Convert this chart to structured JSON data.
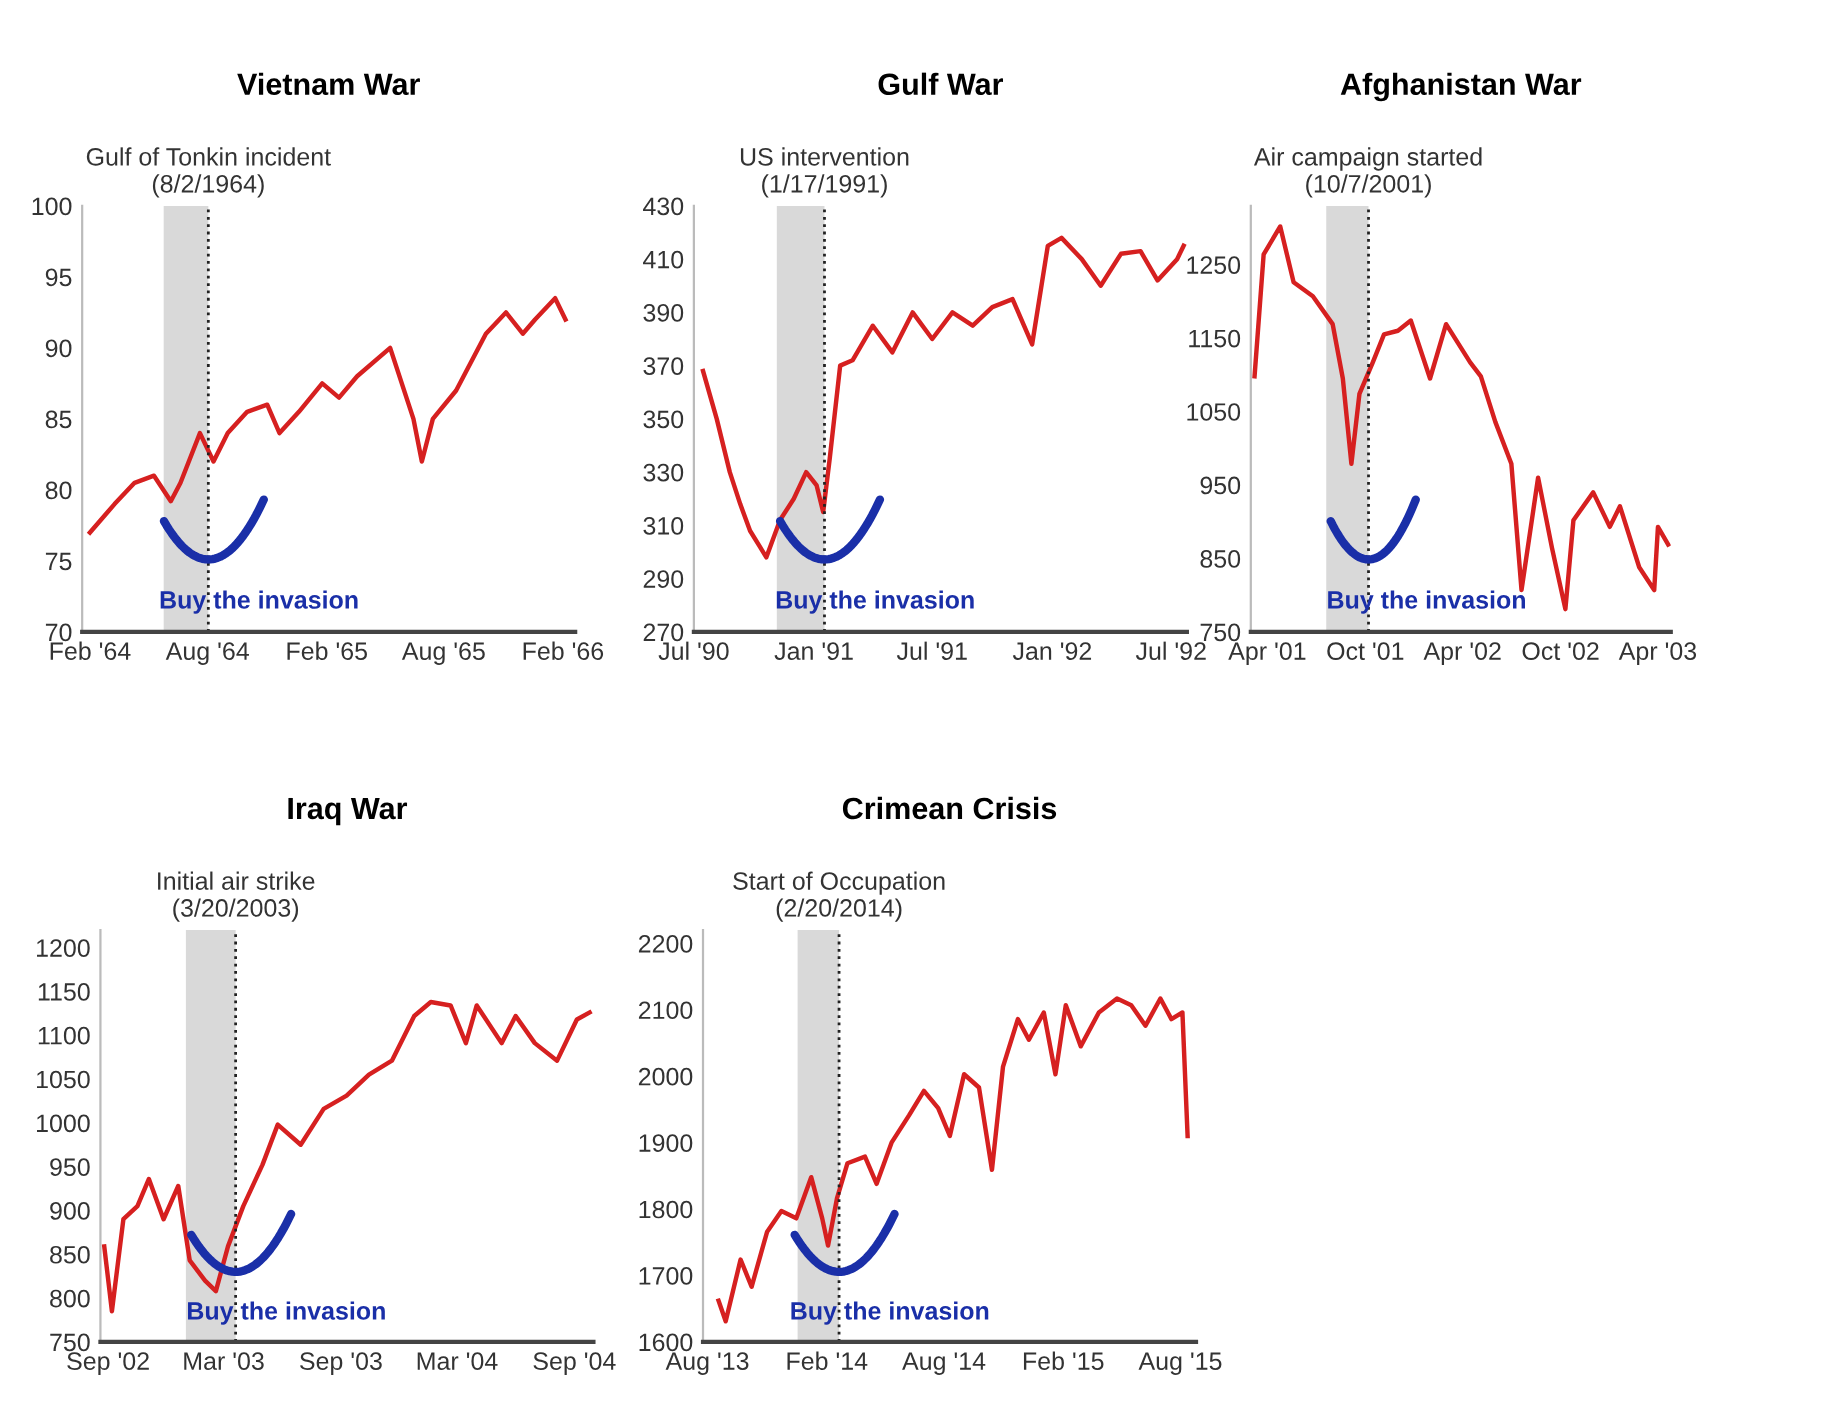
{
  "chart_data": [
    {
      "type": "line",
      "title": "Vietnam War",
      "x": [
        "1964-02-01",
        "1964-03-10",
        "1964-04-10",
        "1964-05-10",
        "1964-06-05",
        "1964-06-20",
        "1964-07-20",
        "1964-08-10",
        "1964-09-01",
        "1964-10-01",
        "1964-11-01",
        "1964-11-20",
        "1964-12-20",
        "1965-01-25",
        "1965-02-20",
        "1965-03-20",
        "1965-05-10",
        "1965-06-15",
        "1965-06-28",
        "1965-07-15",
        "1965-08-20",
        "1965-10-05",
        "1965-11-05",
        "1965-12-01",
        "1965-12-20",
        "1966-01-20",
        "1966-02-05"
      ],
      "series": [
        {
          "color": "#d62020",
          "values": [
            77,
            79,
            80.5,
            81,
            79.2,
            80.5,
            84,
            82,
            84,
            85.5,
            86,
            84,
            85.5,
            87.5,
            86.5,
            88,
            90,
            85,
            82,
            85,
            87,
            91,
            92.5,
            91,
            92,
            93.5,
            92
          ]
        }
      ],
      "xlim": [
        "1964-01-20",
        "1966-02-20"
      ],
      "xticks": [
        {
          "value": "1964-02-01",
          "label": "Feb '64"
        },
        {
          "value": "1964-08-01",
          "label": "Aug '64"
        },
        {
          "value": "1965-02-01",
          "label": "Feb '65"
        },
        {
          "value": "1965-08-01",
          "label": "Aug '65"
        },
        {
          "value": "1966-02-01",
          "label": "Feb '66"
        }
      ],
      "ylim": [
        70,
        100
      ],
      "yticks": [
        70,
        75,
        80,
        85,
        90,
        95,
        100
      ],
      "ref_lines": [
        {
          "axis": "x",
          "value": "1964-08-02",
          "label": "Gulf of Tonkin incident\n(8/2/1964)",
          "color": "#222222",
          "line_style": "dotted"
        }
      ],
      "bands": [
        {
          "axis": "x",
          "from": "1964-05-25",
          "to": "1964-08-02",
          "color": "#d9d9d9"
        }
      ],
      "annotations": [
        "Buy the invasion"
      ]
    },
    {
      "type": "line",
      "title": "Gulf War",
      "x": [
        "1990-07-15",
        "1990-08-05",
        "1990-08-25",
        "1990-09-10",
        "1990-09-25",
        "1990-10-10",
        "1990-10-20",
        "1990-11-10",
        "1990-12-01",
        "1990-12-20",
        "1991-01-05",
        "1991-01-15",
        "1991-01-25",
        "1991-02-10",
        "1991-03-01",
        "1991-04-01",
        "1991-05-01",
        "1991-06-01",
        "1991-07-01",
        "1991-08-01",
        "1991-09-01",
        "1991-10-01",
        "1991-11-01",
        "1991-12-01",
        "1991-12-25",
        "1992-01-15",
        "1992-02-15",
        "1992-03-15",
        "1992-04-15",
        "1992-05-15",
        "1992-06-10",
        "1992-07-10",
        "1992-07-20"
      ],
      "series": [
        {
          "color": "#d62020",
          "values": [
            368,
            350,
            330,
            318,
            308,
            302,
            298,
            312,
            320,
            330,
            325,
            315,
            335,
            370,
            372,
            385,
            375,
            390,
            380,
            390,
            385,
            392,
            395,
            378,
            415,
            418,
            410,
            400,
            412,
            413,
            402,
            410,
            415
          ]
        }
      ],
      "xlim": [
        "1990-07-01",
        "1992-07-25"
      ],
      "xticks": [
        {
          "value": "1990-07-01",
          "label": "Jul '90"
        },
        {
          "value": "1991-01-01",
          "label": "Jan '91"
        },
        {
          "value": "1991-07-01",
          "label": "Jul '91"
        },
        {
          "value": "1992-01-01",
          "label": "Jan '92"
        },
        {
          "value": "1992-07-01",
          "label": "Jul '92"
        }
      ],
      "ylim": [
        270,
        430
      ],
      "yticks": [
        270,
        290,
        310,
        330,
        350,
        370,
        390,
        410,
        430
      ],
      "ref_lines": [
        {
          "axis": "x",
          "value": "1991-01-17",
          "label": "US intervention\n(1/17/1991)",
          "color": "#222222",
          "line_style": "dotted"
        }
      ],
      "bands": [
        {
          "axis": "x",
          "from": "1990-11-05",
          "to": "1991-01-17",
          "color": "#d9d9d9"
        }
      ],
      "annotations": [
        "Buy the invasion"
      ]
    },
    {
      "type": "line",
      "title": "Afghanistan War",
      "x": [
        "2001-03-08",
        "2001-03-25",
        "2001-04-25",
        "2001-05-20",
        "2001-06-25",
        "2001-08-01",
        "2001-08-20",
        "2001-09-05",
        "2001-09-20",
        "2001-10-15",
        "2001-11-05",
        "2001-12-01",
        "2001-12-25",
        "2002-01-30",
        "2002-03-01",
        "2002-04-15",
        "2002-05-05",
        "2002-06-01",
        "2002-07-01",
        "2002-07-20",
        "2002-08-20",
        "2002-09-15",
        "2002-10-10",
        "2002-10-25",
        "2002-12-01",
        "2003-01-01",
        "2003-01-20",
        "2003-02-25",
        "2003-03-25",
        "2003-04-01",
        "2003-04-20"
      ],
      "series": [
        {
          "color": "#d62020",
          "values": [
            1098,
            1264,
            1302,
            1226,
            1207,
            1169,
            1095,
            979,
            1074,
            1117,
            1155,
            1160,
            1174,
            1095,
            1169,
            1117,
            1098,
            1036,
            979,
            807,
            960,
            864,
            781,
            902,
            940,
            893,
            921,
            838,
            807,
            893,
            869
          ]
        }
      ],
      "xlim": [
        "2001-03-01",
        "2003-04-25"
      ],
      "xticks": [
        {
          "value": "2001-04-01",
          "label": "Apr '01"
        },
        {
          "value": "2001-10-01",
          "label": "Oct '01"
        },
        {
          "value": "2002-04-01",
          "label": "Apr '02"
        },
        {
          "value": "2002-10-01",
          "label": "Oct '02"
        },
        {
          "value": "2003-04-01",
          "label": "Apr '03"
        }
      ],
      "ylim": [
        750,
        1330
      ],
      "yticks": [
        750,
        850,
        950,
        1050,
        1150,
        1250
      ],
      "ref_lines": [
        {
          "axis": "x",
          "value": "2001-10-07",
          "label": "Air campaign started\n(10/7/2001)",
          "color": "#222222",
          "line_style": "dotted"
        }
      ],
      "bands": [
        {
          "axis": "x",
          "from": "2001-07-20",
          "to": "2001-10-07",
          "color": "#d9d9d9"
        }
      ],
      "annotations": [
        "Buy the invasion"
      ]
    },
    {
      "type": "line",
      "title": "Iraq War",
      "x": [
        "2002-08-26",
        "2002-09-07",
        "2002-09-25",
        "2002-10-17",
        "2002-11-04",
        "2002-11-27",
        "2002-12-20",
        "2003-01-07",
        "2003-01-31",
        "2003-02-17",
        "2003-03-08",
        "2003-04-01",
        "2003-05-01",
        "2003-05-25",
        "2003-06-30",
        "2003-08-05",
        "2003-09-10",
        "2003-10-15",
        "2003-11-20",
        "2003-12-25",
        "2004-01-20",
        "2004-02-20",
        "2004-03-15",
        "2004-04-01",
        "2004-05-10",
        "2004-06-01",
        "2004-07-01",
        "2004-08-05",
        "2004-09-05",
        "2004-09-25"
      ],
      "series": [
        {
          "color": "#d62020",
          "values": [
            859,
            785,
            890,
            905,
            936,
            890,
            928,
            843,
            820,
            808,
            859,
            905,
            952,
            998,
            975,
            1016,
            1031,
            1055,
            1071,
            1122,
            1138,
            1134,
            1091,
            1134,
            1091,
            1122,
            1091,
            1071,
            1118,
            1126
          ]
        }
      ],
      "xlim": [
        "2002-08-20",
        "2004-10-01"
      ],
      "xticks": [
        {
          "value": "2002-09-01",
          "label": "Sep '02"
        },
        {
          "value": "2003-03-01",
          "label": "Mar '03"
        },
        {
          "value": "2003-09-01",
          "label": "Sep '03"
        },
        {
          "value": "2004-03-01",
          "label": "Mar '04"
        },
        {
          "value": "2004-09-01",
          "label": "Sep '04"
        }
      ],
      "ylim": [
        750,
        1220
      ],
      "yticks": [
        750,
        800,
        850,
        900,
        950,
        1000,
        1050,
        1100,
        1150,
        1200
      ],
      "ref_lines": [
        {
          "axis": "x",
          "value": "2003-03-20",
          "label": "Initial air strike\n(3/20/2003)",
          "color": "#222222",
          "line_style": "dotted"
        }
      ],
      "bands": [
        {
          "axis": "x",
          "from": "2003-01-01",
          "to": "2003-03-20",
          "color": "#d9d9d9"
        }
      ],
      "annotations": [
        "Buy the invasion"
      ]
    },
    {
      "type": "line",
      "title": "Crimean Crisis",
      "x": [
        "2013-08-18",
        "2013-08-29",
        "2013-09-21",
        "2013-10-08",
        "2013-11-01",
        "2013-11-23",
        "2013-12-16",
        "2014-01-08",
        "2014-01-25",
        "2014-02-03",
        "2014-02-17",
        "2014-03-05",
        "2014-04-01",
        "2014-04-19",
        "2014-05-12",
        "2014-06-08",
        "2014-07-01",
        "2014-07-23",
        "2014-08-10",
        "2014-09-01",
        "2014-09-24",
        "2014-10-14",
        "2014-10-31",
        "2014-11-23",
        "2014-12-10",
        "2015-01-02",
        "2015-01-20",
        "2015-02-05",
        "2015-02-28",
        "2015-03-28",
        "2015-04-25",
        "2015-05-17",
        "2015-06-08",
        "2015-07-01",
        "2015-07-18",
        "2015-08-04",
        "2015-08-12"
      ],
      "series": [
        {
          "color": "#d62020",
          "values": [
            1662,
            1631,
            1724,
            1683,
            1766,
            1797,
            1786,
            1848,
            1786,
            1745,
            1817,
            1869,
            1879,
            1838,
            1900,
            1941,
            1978,
            1952,
            1910,
            2003,
            1983,
            1859,
            2014,
            2086,
            2055,
            2096,
            2003,
            2107,
            2045,
            2096,
            2117,
            2107,
            2076,
            2117,
            2086,
            2096,
            1910
          ]
        }
      ],
      "xlim": [
        "2013-07-25",
        "2015-08-25"
      ],
      "xticks": [
        {
          "value": "2013-08-01",
          "label": "Aug '13"
        },
        {
          "value": "2014-02-01",
          "label": "Feb '14"
        },
        {
          "value": "2014-08-01",
          "label": "Aug '14"
        },
        {
          "value": "2015-02-01",
          "label": "Feb '15"
        },
        {
          "value": "2015-08-01",
          "label": "Aug '15"
        }
      ],
      "ylim": [
        1600,
        2220
      ],
      "yticks": [
        1600,
        1700,
        1800,
        1900,
        2000,
        2100,
        2200
      ],
      "ref_lines": [
        {
          "axis": "x",
          "value": "2014-02-20",
          "label": "Start of Occupation\n(2/20/2014)",
          "color": "#222222",
          "line_style": "dotted"
        }
      ],
      "bands": [
        {
          "axis": "x",
          "from": "2013-12-18",
          "to": "2014-02-20",
          "color": "#d9d9d9"
        }
      ],
      "annotations": [
        "Buy the invasion"
      ]
    }
  ]
}
